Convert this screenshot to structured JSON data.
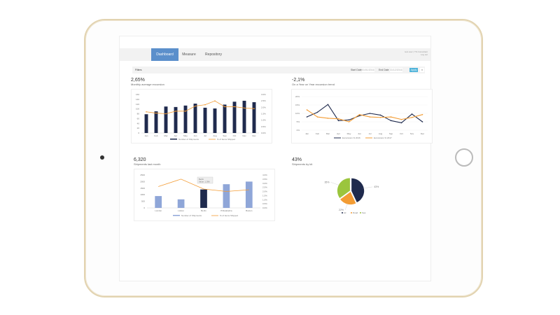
{
  "nav": {
    "tabs": [
      "Dashboard",
      "Measure",
      "Repository"
    ],
    "active": 0,
    "user_line1": "test.user | TS Consultant",
    "user_line2": "Log out"
  },
  "filters": {
    "label": "Filters",
    "start_label": "Start Date",
    "start_value": "01/01/2016",
    "end_label": "End Date",
    "end_value": "31/12/2016",
    "apply": "Apply",
    "clear": "×"
  },
  "colors": {
    "accent": "#5b8fcb",
    "navy": "#1f2a4d",
    "orange": "#f39c34",
    "green": "#9bc53d",
    "lightblue": "#8fa6d8"
  },
  "cards": [
    {
      "kpi": "2,65%",
      "subtitle": "Monthly average excursion"
    },
    {
      "kpi": "-2,1%",
      "subtitle": "On a Year on Year excursion trend"
    },
    {
      "kpi": "6,320",
      "subtitle": "Shipments last month"
    },
    {
      "kpi": "43%",
      "subtitle": "Shipments by kit"
    }
  ],
  "chart_data": [
    {
      "type": "bar",
      "categories": [
        "Jan",
        "Feb",
        "Mar",
        "Apr",
        "May",
        "Jun",
        "Jul",
        "Aug",
        "Sep",
        "Oct",
        "Nov",
        "Dec"
      ],
      "series": [
        {
          "name": "Number of Shipments",
          "type": "bar",
          "values": [
            78,
            90,
            110,
            108,
            114,
            122,
            105,
            102,
            118,
            130,
            134,
            128
          ]
        },
        {
          "name": "% of Items Shipped",
          "type": "line",
          "axis": "right",
          "values": [
            1.65,
            1.55,
            1.5,
            1.7,
            1.7,
            2.1,
            2.2,
            2.5,
            2.05,
            2.05,
            1.95,
            1.9
          ]
        }
      ],
      "ylim": [
        0,
        160
      ],
      "yticks": [
        0,
        20,
        40,
        60,
        80,
        100,
        120,
        140,
        160
      ],
      "y2lim": [
        0,
        3
      ],
      "y2ticks": [
        "0.0%",
        "0.5%",
        "1.0%",
        "1.5%",
        "2.0%",
        "2.5%",
        "3.0%"
      ]
    },
    {
      "type": "line",
      "categories": [
        "Jan",
        "Feb",
        "Mar",
        "Apr",
        "May",
        "Jun",
        "Jul",
        "Aug",
        "Sep",
        "Oct",
        "Nov",
        "Dec"
      ],
      "series": [
        {
          "name": "Excursions % 2016",
          "values": [
            7.9,
            10.7,
            15.3,
            5.7,
            6.1,
            8.6,
            10,
            9,
            5.7,
            4.4,
            9.6,
            5
          ]
        },
        {
          "name": "Excursions % 2017",
          "values": [
            12.1,
            7.9,
            7.1,
            6.8,
            5,
            9.3,
            7.9,
            7.6,
            7.9,
            6.4,
            7.6,
            9.3
          ]
        }
      ],
      "ylim": [
        0,
        20
      ],
      "yticks": [
        "0%",
        "5%",
        "10%",
        "15%",
        "20%"
      ]
    },
    {
      "type": "bar",
      "categories": [
        "London",
        "Lisbon",
        "Berlin",
        "Philadelphia",
        "Boston"
      ],
      "series": [
        {
          "name": "Number of Shipments",
          "type": "bar",
          "values": [
            900,
            650,
            1400,
            1800,
            2000
          ]
        },
        {
          "name": "% of Items Shipped",
          "type": "line",
          "axis": "right",
          "values": [
            2.6,
            3.5,
            2.3,
            2.0,
            2.2
          ]
        }
      ],
      "highlight": "Berlin",
      "tooltip": {
        "title": "Berlin",
        "value": "Value: 1,396"
      },
      "ylim": [
        0,
        2500
      ],
      "yticks": [
        0,
        500,
        1000,
        1500,
        2000,
        2500
      ],
      "y2lim": [
        0,
        4
      ],
      "y2ticks": [
        "0.0%",
        "0.5%",
        "1.0%",
        "1.5%",
        "2.0%",
        "2.5%",
        "3.0%",
        "3.5%",
        "4.0%"
      ]
    },
    {
      "type": "pie",
      "categories": [
        "Air",
        "Road",
        "Sea"
      ],
      "values": [
        43,
        22,
        35
      ],
      "labels": [
        "43%",
        "22%",
        "35%"
      ]
    }
  ]
}
